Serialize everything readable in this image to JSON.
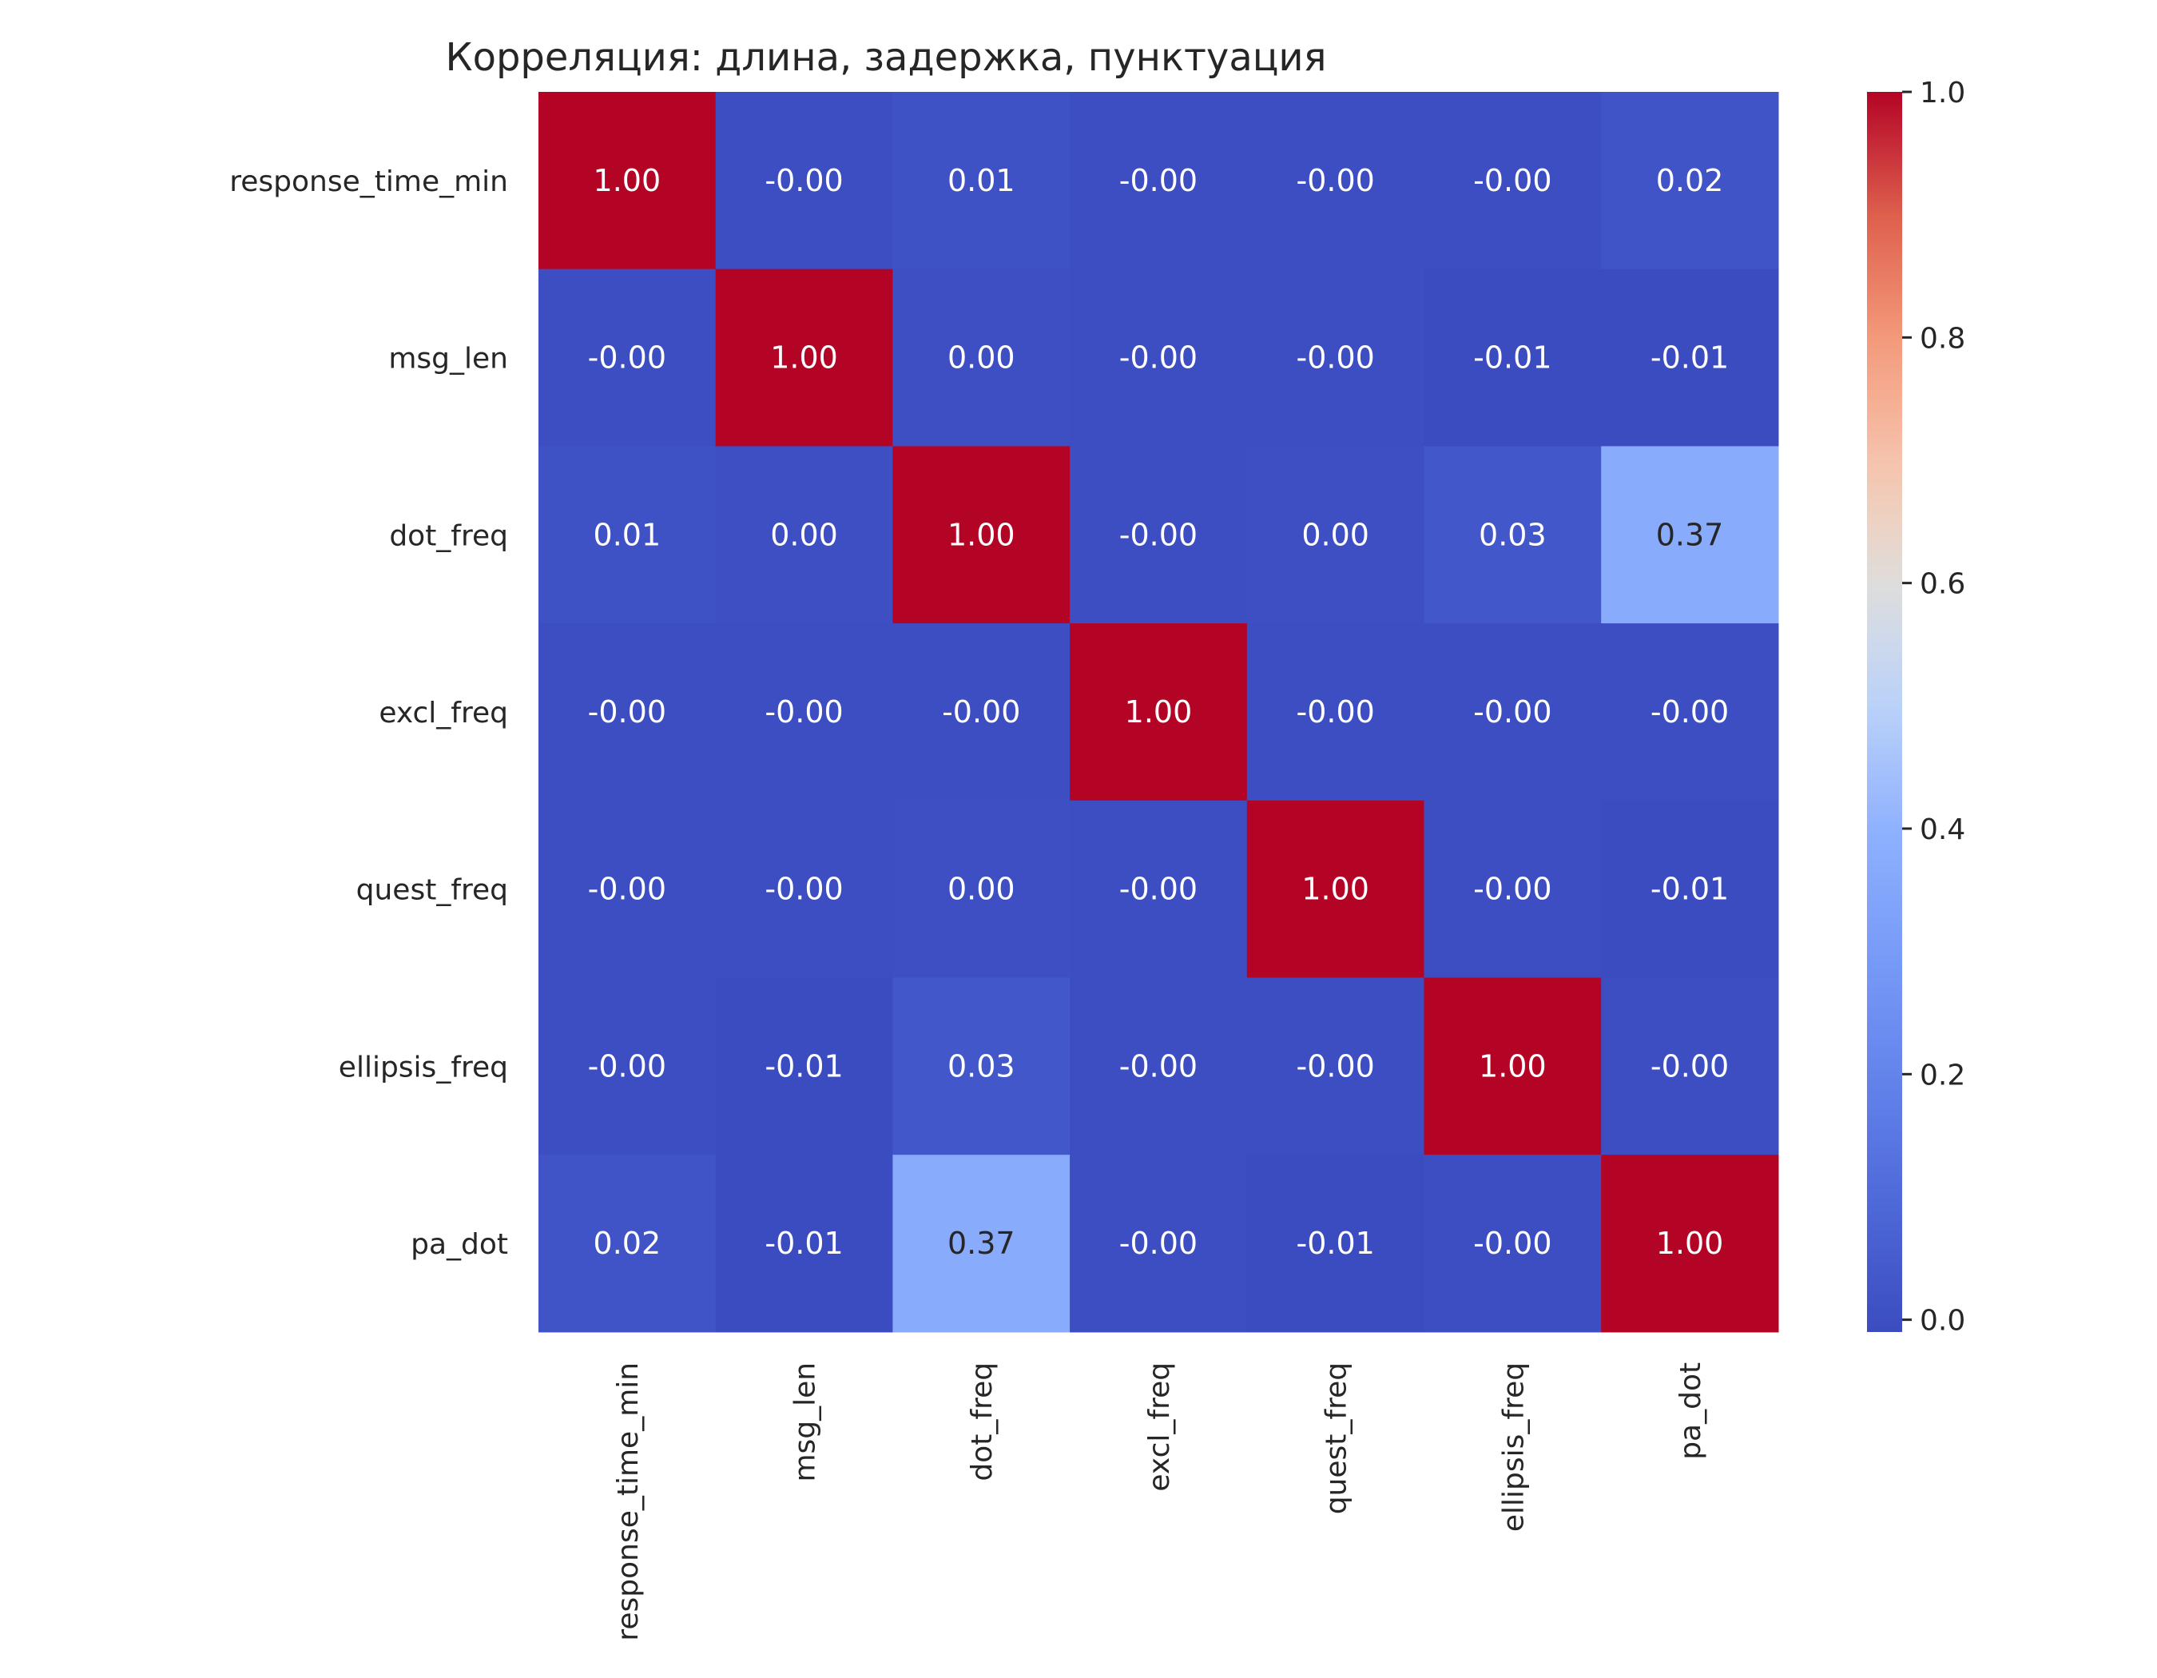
{
  "chart_data": {
    "type": "heatmap",
    "title": "Корреляция: длина, задержка, пунктуация",
    "xlabel": "",
    "ylabel": "",
    "row_labels": [
      "response_time_min",
      "msg_len",
      "dot_freq",
      "excl_freq",
      "quest_freq",
      "ellipsis_freq",
      "pa_dot"
    ],
    "col_labels": [
      "response_time_min",
      "msg_len",
      "dot_freq",
      "excl_freq",
      "quest_freq",
      "ellipsis_freq",
      "pa_dot"
    ],
    "values": [
      [
        1.0,
        -0.001,
        0.01,
        -0.001,
        -0.001,
        -0.001,
        0.02
      ],
      [
        -0.001,
        1.0,
        0.001,
        -0.001,
        -0.001,
        -0.01,
        -0.01
      ],
      [
        0.01,
        0.001,
        1.0,
        -0.001,
        0.001,
        0.03,
        0.37
      ],
      [
        -0.001,
        -0.001,
        -0.001,
        1.0,
        -0.001,
        -0.001,
        -0.001
      ],
      [
        -0.001,
        -0.001,
        0.001,
        -0.001,
        1.0,
        -0.001,
        -0.01
      ],
      [
        -0.001,
        -0.01,
        0.03,
        -0.001,
        -0.001,
        1.0,
        -0.001
      ],
      [
        0.02,
        -0.01,
        0.37,
        -0.001,
        -0.01,
        -0.001,
        1.0
      ]
    ],
    "annotations": [
      [
        "1.00",
        "-0.00",
        "0.01",
        "-0.00",
        "-0.00",
        "-0.00",
        "0.02"
      ],
      [
        "-0.00",
        "1.00",
        "0.00",
        "-0.00",
        "-0.00",
        "-0.01",
        "-0.01"
      ],
      [
        "0.01",
        "0.00",
        "1.00",
        "-0.00",
        "0.00",
        "0.03",
        "0.37"
      ],
      [
        "-0.00",
        "-0.00",
        "-0.00",
        "1.00",
        "-0.00",
        "-0.00",
        "-0.00"
      ],
      [
        "-0.00",
        "-0.00",
        "0.00",
        "-0.00",
        "1.00",
        "-0.00",
        "-0.01"
      ],
      [
        "-0.00",
        "-0.01",
        "0.03",
        "-0.00",
        "-0.00",
        "1.00",
        "-0.00"
      ],
      [
        "0.02",
        "-0.01",
        "0.37",
        "-0.00",
        "-0.01",
        "-0.00",
        "1.00"
      ]
    ],
    "colormap": "coolwarm",
    "vmin": -0.01,
    "vmax": 1.0,
    "colorbar_ticks": [
      "0.0",
      "0.2",
      "0.4",
      "0.6",
      "0.8",
      "1.0"
    ],
    "colorbar_tick_values": [
      0.0,
      0.2,
      0.4,
      0.6,
      0.8,
      1.0
    ],
    "grid": false,
    "legend": "colorbar-right"
  }
}
